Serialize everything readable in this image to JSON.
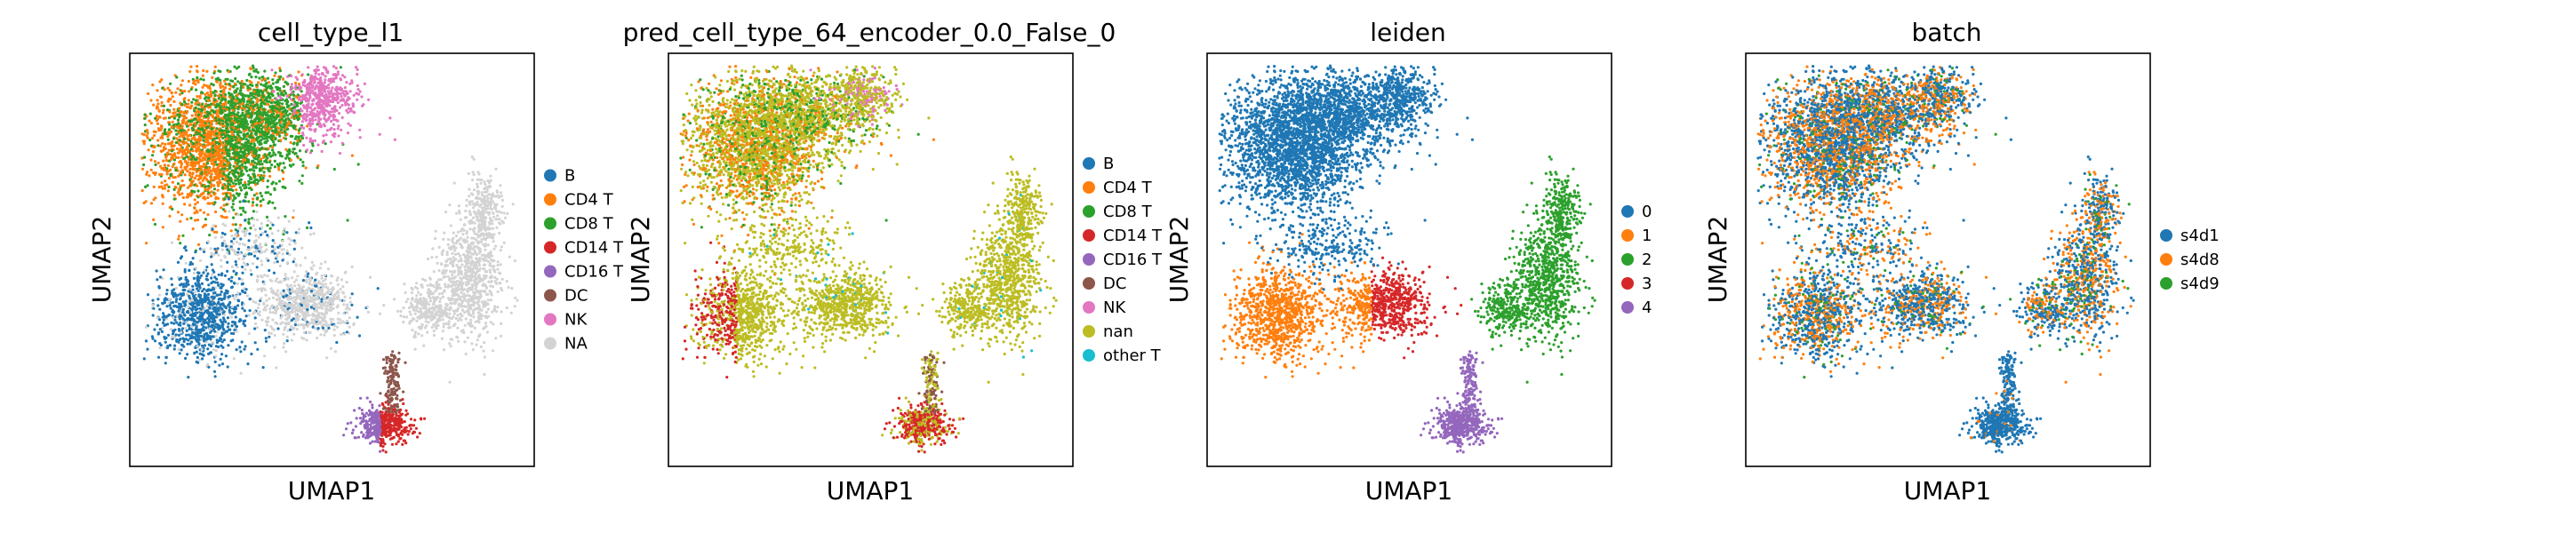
{
  "figure": {
    "panels": [
      {
        "id": "celltype",
        "title": "cell_type_l1",
        "xlabel": "UMAP1",
        "ylabel": "UMAP2",
        "legend": [
          {
            "label": "B",
            "color": "#1f77b4"
          },
          {
            "label": "CD4 T",
            "color": "#ff7f0e"
          },
          {
            "label": "CD8 T",
            "color": "#2ca02c"
          },
          {
            "label": "CD14 T",
            "color": "#d62728"
          },
          {
            "label": "CD16 T",
            "color": "#9467bd"
          },
          {
            "label": "DC",
            "color": "#8c564b"
          },
          {
            "label": "NK",
            "color": "#e377c2"
          },
          {
            "label": "NA",
            "color": "#d3d3d3"
          }
        ]
      },
      {
        "id": "pred",
        "title": "pred_cell_type_64_encoder_0.0_False_0",
        "xlabel": "UMAP1",
        "ylabel": "UMAP2",
        "legend": [
          {
            "label": "B",
            "color": "#1f77b4"
          },
          {
            "label": "CD4 T",
            "color": "#ff7f0e"
          },
          {
            "label": "CD8 T",
            "color": "#2ca02c"
          },
          {
            "label": "CD14 T",
            "color": "#d62728"
          },
          {
            "label": "CD16 T",
            "color": "#9467bd"
          },
          {
            "label": "DC",
            "color": "#8c564b"
          },
          {
            "label": "NK",
            "color": "#e377c2"
          },
          {
            "label": "nan",
            "color": "#bcbd22"
          },
          {
            "label": "other T",
            "color": "#17becf"
          }
        ]
      },
      {
        "id": "leiden",
        "title": "leiden",
        "xlabel": "UMAP1",
        "ylabel": "UMAP2",
        "legend": [
          {
            "label": "0",
            "color": "#1f77b4"
          },
          {
            "label": "1",
            "color": "#ff7f0e"
          },
          {
            "label": "2",
            "color": "#2ca02c"
          },
          {
            "label": "3",
            "color": "#d62728"
          },
          {
            "label": "4",
            "color": "#9467bd"
          }
        ]
      },
      {
        "id": "batch",
        "title": "batch",
        "xlabel": "UMAP1",
        "ylabel": "UMAP2",
        "legend": [
          {
            "label": "s4d1",
            "color": "#1f77b4"
          },
          {
            "label": "s4d8",
            "color": "#ff7f0e"
          },
          {
            "label": "s4d9",
            "color": "#2ca02c"
          }
        ]
      }
    ]
  },
  "chart_data": [
    {
      "type": "scatter",
      "title": "cell_type_l1",
      "xlabel": "UMAP1",
      "ylabel": "UMAP2",
      "ticks": "none",
      "grid": false,
      "legend_position": "right",
      "series": [
        {
          "name": "B",
          "color": "#1f77b4"
        },
        {
          "name": "CD4 T",
          "color": "#ff7f0e"
        },
        {
          "name": "CD8 T",
          "color": "#2ca02c"
        },
        {
          "name": "CD14 T",
          "color": "#d62728"
        },
        {
          "name": "CD16 T",
          "color": "#9467bd"
        },
        {
          "name": "DC",
          "color": "#8c564b"
        },
        {
          "name": "NK",
          "color": "#e377c2"
        },
        {
          "name": "NA",
          "color": "#d3d3d3"
        }
      ]
    },
    {
      "type": "scatter",
      "title": "pred_cell_type_64_encoder_0.0_False_0",
      "xlabel": "UMAP1",
      "ylabel": "UMAP2",
      "ticks": "none",
      "grid": false,
      "legend_position": "right",
      "series": [
        {
          "name": "B",
          "color": "#1f77b4"
        },
        {
          "name": "CD4 T",
          "color": "#ff7f0e"
        },
        {
          "name": "CD8 T",
          "color": "#2ca02c"
        },
        {
          "name": "CD14 T",
          "color": "#d62728"
        },
        {
          "name": "CD16 T",
          "color": "#9467bd"
        },
        {
          "name": "DC",
          "color": "#8c564b"
        },
        {
          "name": "NK",
          "color": "#e377c2"
        },
        {
          "name": "nan",
          "color": "#bcbd22"
        },
        {
          "name": "other T",
          "color": "#17becf"
        }
      ]
    },
    {
      "type": "scatter",
      "title": "leiden",
      "xlabel": "UMAP1",
      "ylabel": "UMAP2",
      "ticks": "none",
      "grid": false,
      "legend_position": "right",
      "series": [
        {
          "name": "0",
          "color": "#1f77b4"
        },
        {
          "name": "1",
          "color": "#ff7f0e"
        },
        {
          "name": "2",
          "color": "#2ca02c"
        },
        {
          "name": "3",
          "color": "#d62728"
        },
        {
          "name": "4",
          "color": "#9467bd"
        }
      ]
    },
    {
      "type": "scatter",
      "title": "batch",
      "xlabel": "UMAP1",
      "ylabel": "UMAP2",
      "ticks": "none",
      "grid": false,
      "legend_position": "right",
      "series": [
        {
          "name": "s4d1",
          "color": "#1f77b4"
        },
        {
          "name": "s4d8",
          "color": "#ff7f0e"
        },
        {
          "name": "s4d9",
          "color": "#2ca02c"
        }
      ]
    }
  ]
}
